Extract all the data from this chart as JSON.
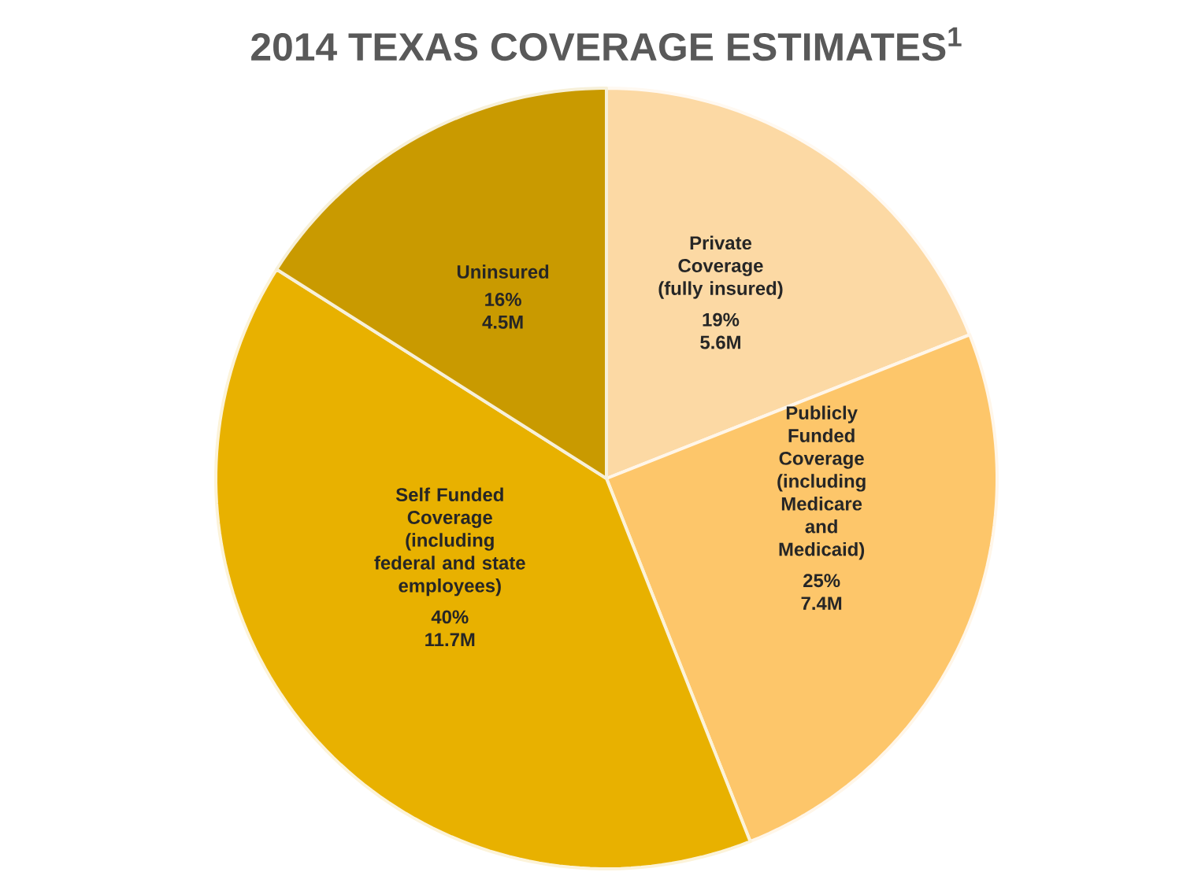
{
  "chart_data": {
    "type": "pie",
    "title": "2014 TEXAS COVERAGE ESTIMATES$^{1}$",
    "categories": [
      "Private Coverage (fully insured)",
      "Publicly Funded Coverage (including Medicare and Medicaid)",
      "Self Funded Coverage (including federal and state employees)",
      "Uninsured"
    ],
    "values": [
      19,
      25,
      40,
      16
    ],
    "value_labels": [
      "19% 5.6M",
      "25% 7.4M",
      "40% 11.7M",
      "16% 4.5M"
    ],
    "colors": [
      "#fcd9a4",
      "#fdc66a",
      "#e8b100",
      "#c99a00"
    ]
  }
}
